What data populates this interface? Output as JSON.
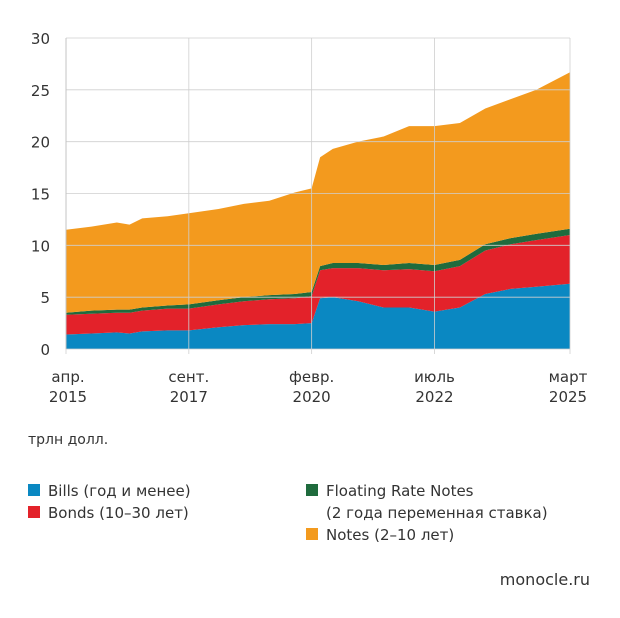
{
  "chart_data": {
    "type": "area",
    "stacked": true,
    "unit_label": "трлн долл.",
    "ylim": [
      0,
      30
    ],
    "y_ticks": [
      0,
      5,
      10,
      15,
      20,
      25,
      30
    ],
    "x_ticks": [
      {
        "date": "2015-04",
        "line1": "апр.",
        "line2": "2015"
      },
      {
        "date": "2017-09",
        "line1": "сент.",
        "line2": "2017"
      },
      {
        "date": "2020-02",
        "line1": "февр.",
        "line2": "2020"
      },
      {
        "date": "2022-07",
        "line1": "июль",
        "line2": "2022"
      },
      {
        "date": "2025-03",
        "line1": "март",
        "line2": "2025"
      }
    ],
    "dates": [
      "2015-04",
      "2015-10",
      "2016-04",
      "2016-07",
      "2016-10",
      "2017-04",
      "2017-09",
      "2018-04",
      "2018-10",
      "2019-04",
      "2019-10",
      "2020-02",
      "2020-04",
      "2020-07",
      "2021-01",
      "2021-07",
      "2022-01",
      "2022-07",
      "2023-01",
      "2023-07",
      "2024-01",
      "2024-07",
      "2025-03"
    ],
    "series": [
      {
        "name": "Bills (год и менее)",
        "color": "#0a88c2",
        "values": [
          1.4,
          1.5,
          1.6,
          1.5,
          1.7,
          1.8,
          1.8,
          2.1,
          2.3,
          2.4,
          2.4,
          2.5,
          4.9,
          5.0,
          4.6,
          4.0,
          4.0,
          3.6,
          4.0,
          5.3,
          5.8,
          6.0,
          6.3
        ]
      },
      {
        "name": "Bonds (10–30 лет)",
        "color": "#e3222a",
        "values": [
          1.9,
          1.9,
          1.9,
          2.0,
          2.0,
          2.1,
          2.1,
          2.2,
          2.3,
          2.4,
          2.5,
          2.6,
          2.7,
          2.8,
          3.2,
          3.6,
          3.7,
          3.9,
          4.0,
          4.2,
          4.3,
          4.5,
          4.7
        ]
      },
      {
        "name": "Floating Rate Notes (2 года переменная ставка)",
        "color": "#1f6b3d",
        "values": [
          0.2,
          0.3,
          0.3,
          0.3,
          0.3,
          0.3,
          0.4,
          0.4,
          0.4,
          0.4,
          0.4,
          0.4,
          0.4,
          0.5,
          0.5,
          0.5,
          0.6,
          0.6,
          0.6,
          0.6,
          0.6,
          0.6,
          0.6
        ]
      },
      {
        "name": "Notes (2–10 лет)",
        "color": "#f39a1e",
        "values": [
          8.0,
          8.1,
          8.4,
          8.2,
          8.6,
          8.6,
          8.8,
          8.8,
          9.0,
          9.1,
          9.8,
          10.0,
          10.5,
          11.0,
          11.7,
          12.4,
          13.2,
          13.4,
          13.2,
          13.1,
          13.4,
          13.9,
          15.1
        ]
      }
    ],
    "legend": {
      "bills": "Bills (год и менее)",
      "bonds": "Bonds (10–30 лет)",
      "frn_line1": "Floating Rate Notes",
      "frn_line2": "(2 года переменная ставка)",
      "notes": "Notes (2–10 лет)"
    },
    "source": "monocle.ru"
  }
}
